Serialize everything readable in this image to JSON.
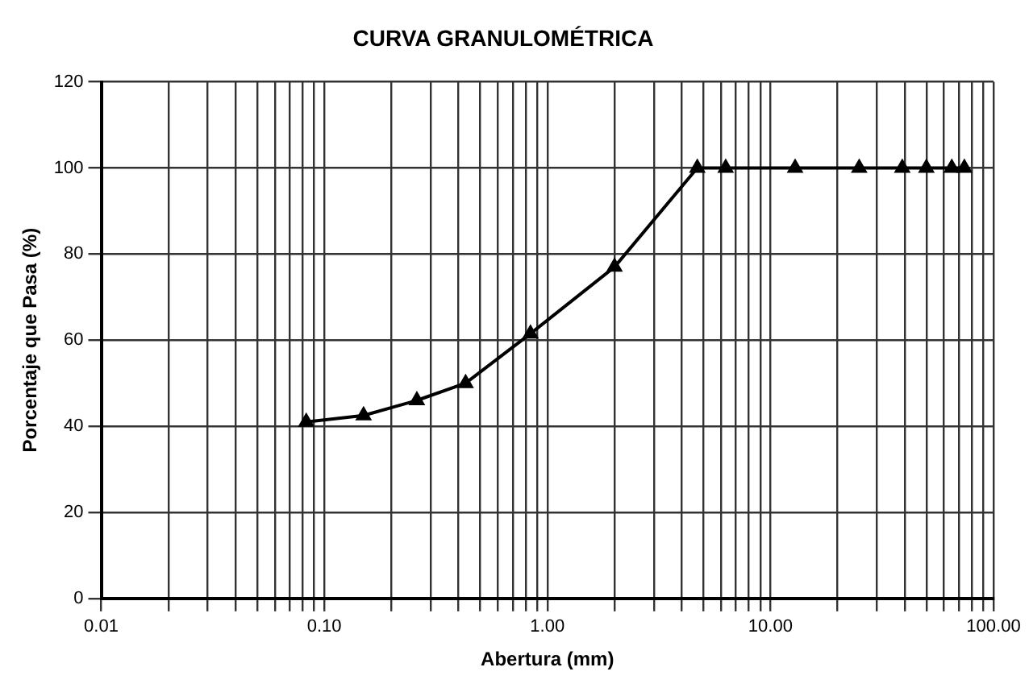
{
  "chart_data": {
    "type": "line",
    "title": "CURVA GRANULOMÉTRICA",
    "xlabel": "Abertura (mm)",
    "ylabel": "Porcentaje que Pasa (%)",
    "series": [
      {
        "color": "#000000",
        "x": [
          0.083,
          0.15,
          0.26,
          0.43,
          0.84,
          2.0,
          4.7,
          6.3,
          12.9,
          25,
          39,
          50,
          65,
          74
        ],
        "values": [
          41,
          42.5,
          46,
          50,
          61.5,
          77,
          100,
          100,
          100,
          100,
          100,
          100,
          100,
          100
        ]
      }
    ],
    "log": "x",
    "xlim": [
      0.01,
      100
    ],
    "ylim": [
      0,
      120
    ],
    "xticks": [
      {
        "value": 0.01,
        "label": "0.01"
      },
      {
        "value": 0.02,
        "label": null
      },
      {
        "value": 0.03,
        "label": null
      },
      {
        "value": 0.04,
        "label": null
      },
      {
        "value": 0.05,
        "label": null
      },
      {
        "value": 0.06,
        "label": null
      },
      {
        "value": 0.07,
        "label": null
      },
      {
        "value": 0.08,
        "label": null
      },
      {
        "value": 0.09,
        "label": null
      },
      {
        "value": 0.1,
        "label": "0.10"
      },
      {
        "value": 0.2,
        "label": null
      },
      {
        "value": 0.3,
        "label": null
      },
      {
        "value": 0.4,
        "label": null
      },
      {
        "value": 0.5,
        "label": null
      },
      {
        "value": 0.6,
        "label": null
      },
      {
        "value": 0.7,
        "label": null
      },
      {
        "value": 0.8,
        "label": null
      },
      {
        "value": 0.9,
        "label": null
      },
      {
        "value": 1,
        "label": "1.00"
      },
      {
        "value": 2,
        "label": null
      },
      {
        "value": 3,
        "label": null
      },
      {
        "value": 4,
        "label": null
      },
      {
        "value": 5,
        "label": null
      },
      {
        "value": 6,
        "label": null
      },
      {
        "value": 7,
        "label": null
      },
      {
        "value": 8,
        "label": null
      },
      {
        "value": 9,
        "label": null
      },
      {
        "value": 10,
        "label": "10.00"
      },
      {
        "value": 20,
        "label": null
      },
      {
        "value": 30,
        "label": null
      },
      {
        "value": 40,
        "label": null
      },
      {
        "value": 50,
        "label": null
      },
      {
        "value": 60,
        "label": null
      },
      {
        "value": 70,
        "label": null
      },
      {
        "value": 80,
        "label": null
      },
      {
        "value": 90,
        "label": null
      },
      {
        "value": 100,
        "label": "100.00"
      }
    ],
    "yticks": [
      0,
      20,
      40,
      60,
      80,
      100,
      120
    ],
    "grid": true,
    "legend": false,
    "marker": "triangle",
    "line_style": "solid"
  }
}
